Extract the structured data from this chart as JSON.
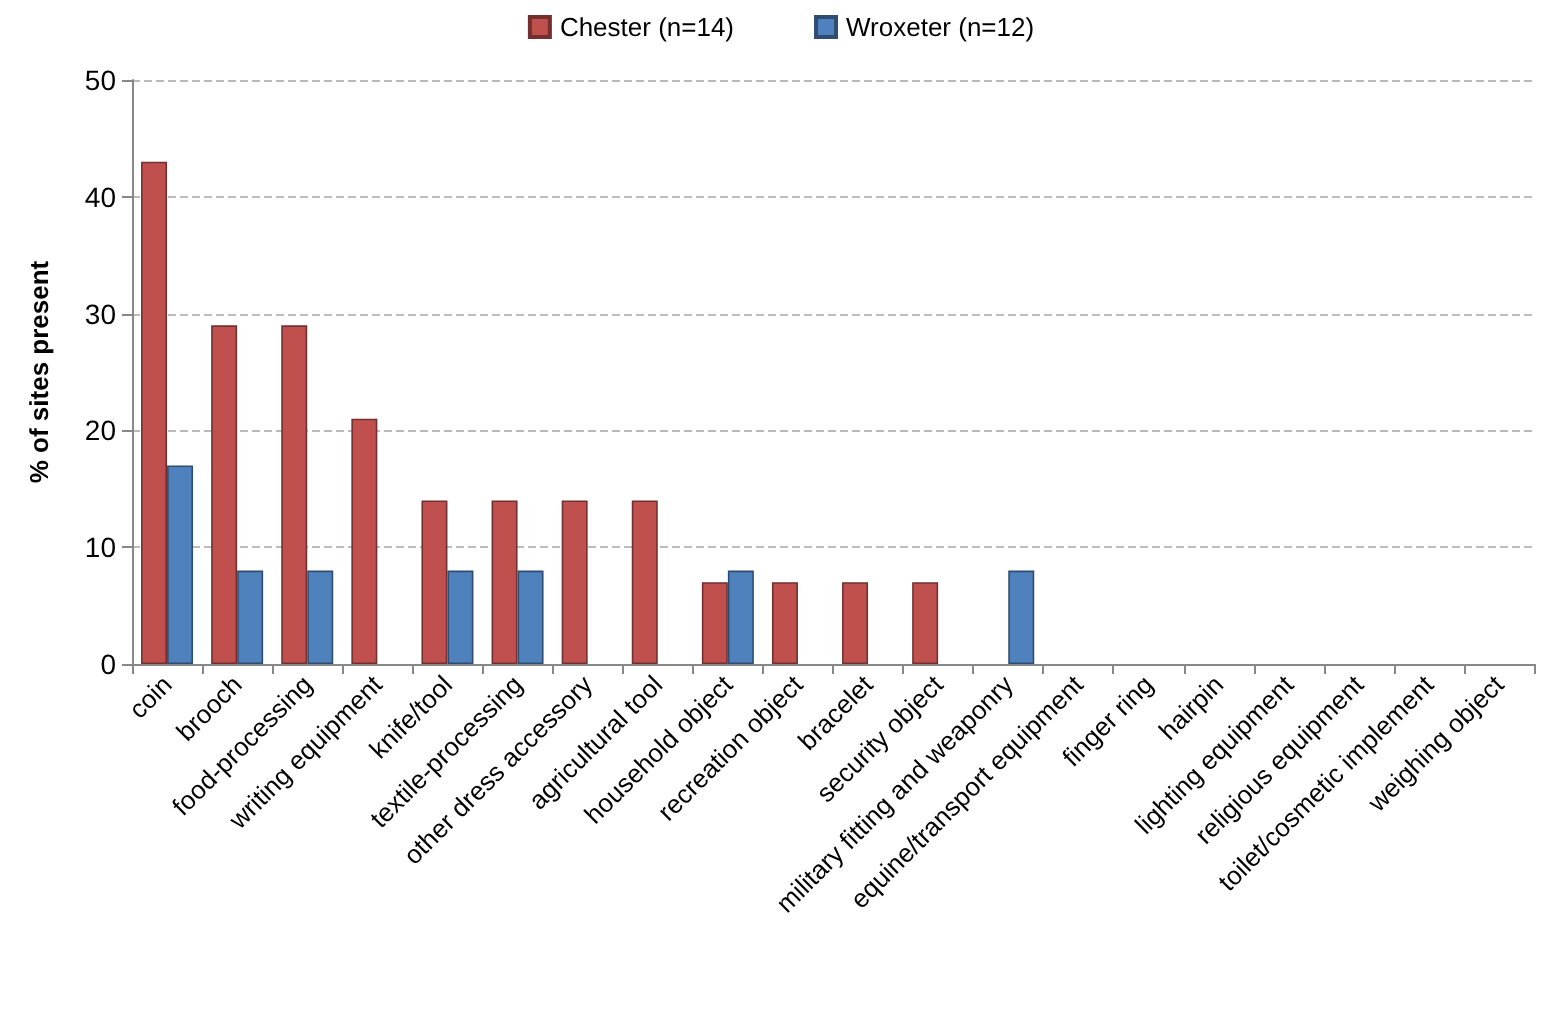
{
  "chart_data": {
    "type": "bar",
    "ylabel": "% of sites present",
    "categories": [
      "coin",
      "brooch",
      "food-processing",
      "writing equipment",
      "knife/tool",
      "textile-processing",
      "other dress accessory",
      "agricultural tool",
      "household object",
      "recreation object",
      "bracelet",
      "security object",
      "military fitting and weaponry",
      "equine/transport equipment",
      "finger ring",
      "hairpin",
      "lighting equipment",
      "religious equipment",
      "toilet/cosmetic implement",
      "weighing object"
    ],
    "series": [
      {
        "name": "Chester (n=14)",
        "color": "#c0504d",
        "values": [
          43,
          29,
          29,
          21,
          14,
          14,
          14,
          14,
          7,
          7,
          7,
          7,
          0,
          0,
          0,
          0,
          0,
          0,
          0,
          0
        ]
      },
      {
        "name": "Wroxeter (n=12)",
        "color": "#4f81bd",
        "values": [
          17,
          8,
          8,
          0,
          8,
          8,
          0,
          0,
          8,
          0,
          0,
          0,
          8,
          0,
          0,
          0,
          0,
          0,
          0,
          0
        ]
      }
    ],
    "ylim": [
      0,
      50
    ],
    "yticks": [
      0,
      10,
      20,
      30,
      40,
      50
    ],
    "grid": "y",
    "legend": "top"
  }
}
